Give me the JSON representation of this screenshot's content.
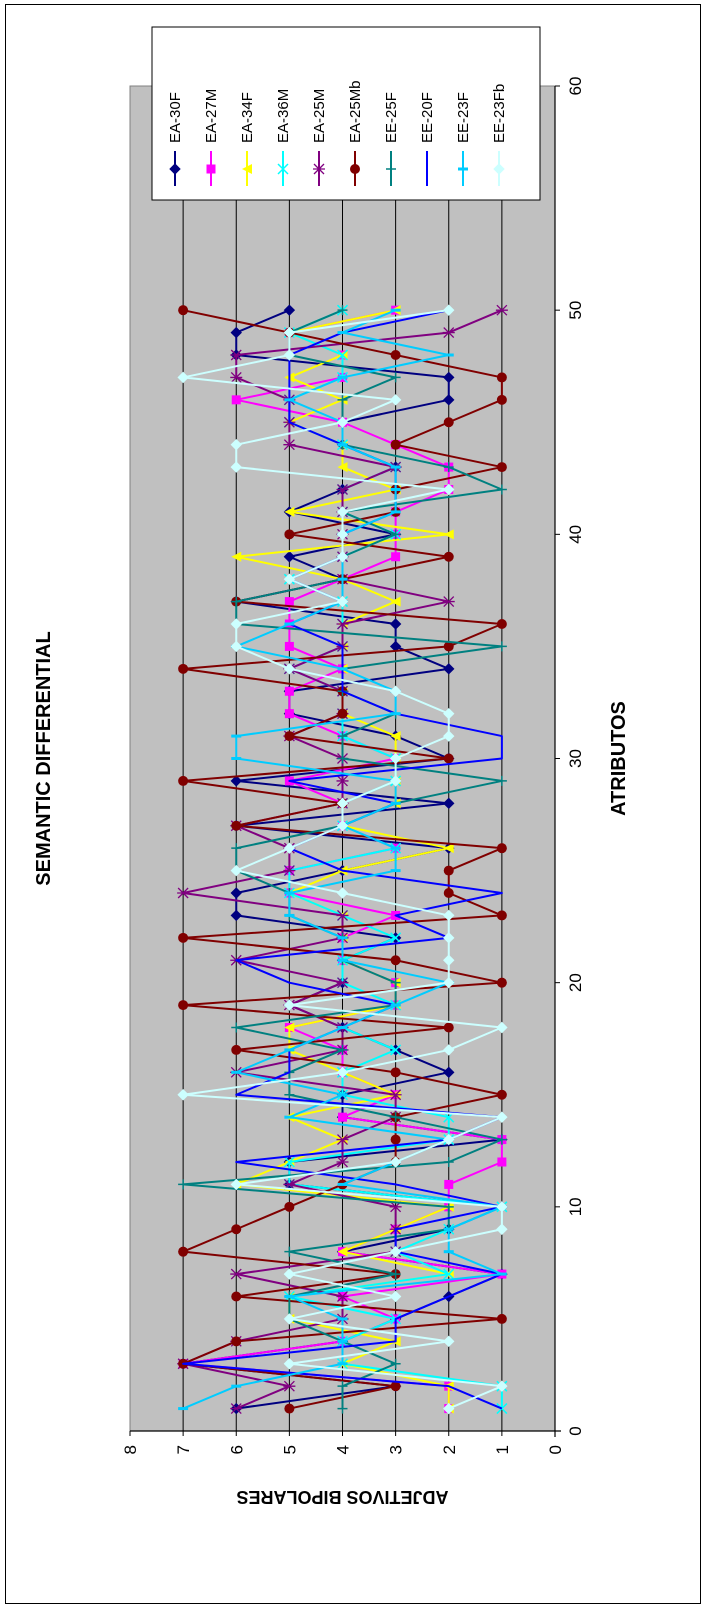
{
  "chart_data": {
    "type": "line",
    "title": "SEMANTIC DIFFERENTIAL",
    "xlabel": "ATRIBUTOS",
    "ylabel": "ADJETIVOS BIPOLARES",
    "xlim": [
      0,
      60
    ],
    "ylim": [
      0,
      8
    ],
    "x_ticks": [
      "0",
      "10",
      "20",
      "30",
      "40",
      "50",
      "60"
    ],
    "y_ticks": [
      "0",
      "1",
      "2",
      "3",
      "4",
      "5",
      "6",
      "7",
      "8"
    ],
    "grid": true,
    "legend_position": "top-right",
    "x": [
      1,
      2,
      3,
      4,
      5,
      6,
      7,
      8,
      9,
      10,
      11,
      12,
      13,
      14,
      15,
      16,
      17,
      18,
      19,
      20,
      21,
      22,
      23,
      24,
      25,
      26,
      27,
      28,
      29,
      30,
      31,
      32,
      33,
      34,
      35,
      36,
      37,
      38,
      39,
      40,
      41,
      42,
      43,
      44,
      45,
      46,
      47,
      48,
      49,
      50
    ],
    "series": [
      {
        "name": "EA-30F",
        "color": "#000080",
        "marker": "diamond",
        "values": [
          6,
          3,
          7,
          4,
          3,
          2,
          1,
          4,
          2,
          1,
          5,
          5,
          1,
          4,
          4,
          2,
          3,
          4,
          5,
          4,
          4,
          3,
          6,
          6,
          4,
          2,
          6,
          2,
          6,
          2,
          3,
          5,
          5,
          2,
          3,
          3,
          6,
          4,
          5,
          3,
          5,
          4,
          3,
          4,
          4,
          2,
          2,
          6,
          6,
          5
        ]
      },
      {
        "name": "EA-27M",
        "color": "#ff00ff",
        "marker": "square",
        "values": [
          2,
          2,
          7,
          4,
          3,
          4,
          1,
          4,
          3,
          2,
          2,
          1,
          1,
          4,
          3,
          4,
          4,
          5,
          3,
          3,
          4,
          4,
          3,
          5,
          5,
          3,
          4,
          4,
          5,
          3,
          4,
          5,
          5,
          4,
          5,
          5,
          5,
          4,
          3,
          3,
          3,
          2,
          2,
          3,
          4,
          6,
          4,
          4,
          5,
          3
        ]
      },
      {
        "name": "EA-34F",
        "color": "#ffff00",
        "marker": "triangle",
        "values": [
          2,
          2,
          4,
          3,
          5,
          5,
          2,
          4,
          3,
          2,
          6,
          5,
          4,
          5,
          3,
          4,
          5,
          5,
          3,
          3,
          4,
          4,
          4,
          5,
          4,
          2,
          4,
          3,
          3,
          3,
          3,
          4,
          4,
          4,
          4,
          4,
          3,
          4,
          6,
          2,
          5,
          3,
          4,
          4,
          5,
          4,
          5,
          4,
          5,
          3
        ]
      },
      {
        "name": "EA-36M",
        "color": "#00ffff",
        "marker": "x",
        "values": [
          1,
          1,
          4,
          4,
          3,
          5,
          2,
          3,
          2,
          1,
          5,
          5,
          2,
          2,
          4,
          4,
          3,
          4,
          3,
          4,
          4,
          3,
          4,
          5,
          5,
          3,
          4,
          4,
          3,
          3,
          4,
          4,
          4,
          5,
          4,
          4,
          4,
          5,
          4,
          3,
          4,
          4,
          3,
          4,
          5,
          5,
          4,
          4,
          5,
          4
        ]
      },
      {
        "name": "EA-25M",
        "color": "#800080",
        "marker": "star",
        "values": [
          6,
          5,
          7,
          6,
          4,
          4,
          6,
          3,
          3,
          3,
          5,
          4,
          4,
          3,
          3,
          6,
          4,
          4,
          5,
          4,
          6,
          4,
          4,
          7,
          5,
          5,
          6,
          4,
          4,
          4,
          5,
          4,
          4,
          5,
          4,
          4,
          2,
          4,
          4,
          4,
          4,
          4,
          3,
          5,
          5,
          5,
          6,
          6,
          2,
          1
        ]
      },
      {
        "name": "EA-25Mb",
        "color": "#800000",
        "marker": "circle",
        "values": [
          5,
          3,
          7,
          6,
          1,
          6,
          3,
          7,
          6,
          5,
          4,
          3,
          3,
          3,
          1,
          3,
          6,
          2,
          7,
          1,
          3,
          7,
          1,
          2,
          2,
          1,
          6,
          4,
          7,
          2,
          5,
          4,
          4,
          7,
          2,
          1,
          6,
          4,
          2,
          5,
          3,
          3,
          1,
          3,
          2,
          1,
          1,
          3,
          5,
          7
        ]
      },
      {
        "name": "EE-25F",
        "color": "#008080",
        "marker": "plus",
        "values": [
          4,
          4,
          3,
          4,
          5,
          5,
          3,
          5,
          2,
          2,
          7,
          2,
          1,
          3,
          5,
          5,
          4,
          6,
          3,
          3,
          4,
          4,
          5,
          5,
          6,
          6,
          4,
          3,
          1,
          4,
          4,
          3,
          4,
          4,
          1,
          6,
          6,
          4,
          4,
          3,
          4,
          1,
          2,
          4,
          4,
          4,
          3,
          5,
          5,
          4
        ]
      },
      {
        "name": "EE-20F",
        "color": "#0000ff",
        "marker": "none",
        "values": [
          1,
          2,
          7,
          3,
          3,
          2,
          1,
          3,
          3,
          1,
          3,
          6,
          2,
          1,
          6,
          5,
          5,
          4,
          3,
          5,
          6,
          2,
          3,
          1,
          4,
          5,
          4,
          3,
          5,
          1,
          1,
          3,
          4,
          4,
          4,
          5,
          4,
          5,
          4,
          4,
          3,
          3,
          3,
          4,
          5,
          5,
          5,
          5,
          4,
          2
        ]
      },
      {
        "name": "EE-23F",
        "color": "#00ccff",
        "marker": "bar",
        "values": [
          7,
          6,
          4,
          4,
          4,
          5,
          1,
          2,
          2,
          1,
          4,
          3,
          2,
          5,
          4,
          6,
          5,
          4,
          3,
          2,
          4,
          4,
          5,
          5,
          3,
          3,
          4,
          3,
          3,
          6,
          6,
          3,
          3,
          4,
          6,
          5,
          4,
          4,
          4,
          4,
          3,
          3,
          3,
          4,
          4,
          5,
          4,
          2,
          4,
          3
        ]
      },
      {
        "name": "EE-23Fb",
        "color": "#ccffff",
        "marker": "diamond",
        "values": [
          2,
          1,
          5,
          2,
          5,
          3,
          5,
          3,
          1,
          1,
          6,
          3,
          2,
          1,
          7,
          4,
          2,
          1,
          5,
          2,
          2,
          2,
          2,
          4,
          6,
          5,
          4,
          4,
          3,
          3,
          2,
          2,
          3,
          5,
          6,
          6,
          4,
          5,
          4,
          4,
          4,
          2,
          6,
          6,
          4,
          3,
          7,
          5,
          5,
          2
        ]
      }
    ]
  }
}
